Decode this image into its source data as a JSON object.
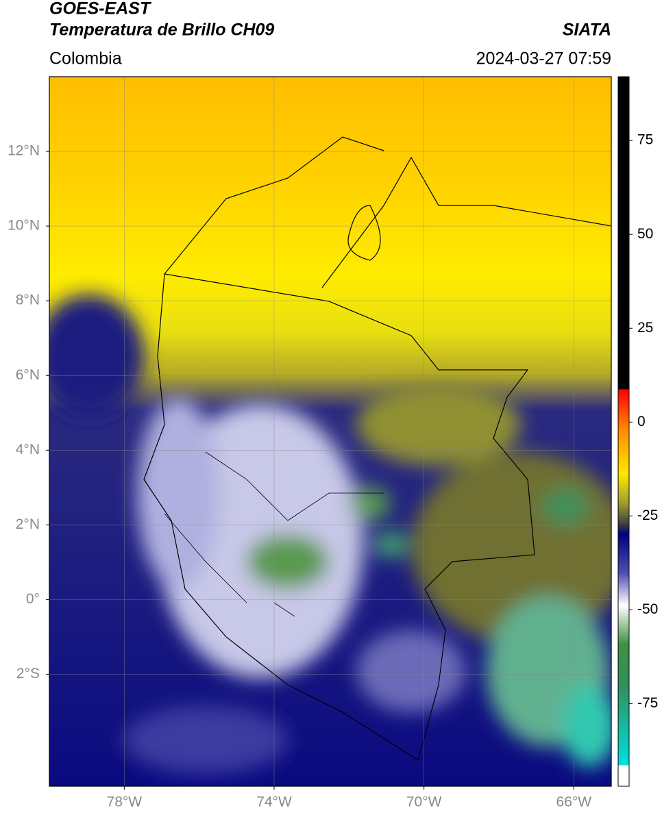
{
  "header": {
    "title": "GOES-EAST",
    "subtitle": "Temperatura de Brillo CH09",
    "source": "SIATA",
    "region": "Colombia",
    "timestamp": "2024-03-27 07:59"
  },
  "map": {
    "xlim": [
      -80,
      -65
    ],
    "ylim": [
      -5,
      14
    ],
    "xticks": [
      {
        "value": -78,
        "label": "78°W"
      },
      {
        "value": -74,
        "label": "74°W"
      },
      {
        "value": -70,
        "label": "70°W"
      },
      {
        "value": -66,
        "label": "66°W"
      }
    ],
    "yticks": [
      {
        "value": 12,
        "label": "12°N"
      },
      {
        "value": 10,
        "label": "10°N"
      },
      {
        "value": 8,
        "label": "8°N"
      },
      {
        "value": 6,
        "label": "6°N"
      },
      {
        "value": 4,
        "label": "4°N"
      },
      {
        "value": 2,
        "label": "2°N"
      },
      {
        "value": 0,
        "label": "0°"
      },
      {
        "value": -2,
        "label": "2°S"
      }
    ],
    "grid": true
  },
  "colorbar": {
    "lim": [
      -97,
      92
    ],
    "ticks": [
      75,
      50,
      25,
      0,
      -25,
      -50,
      -75
    ]
  }
}
